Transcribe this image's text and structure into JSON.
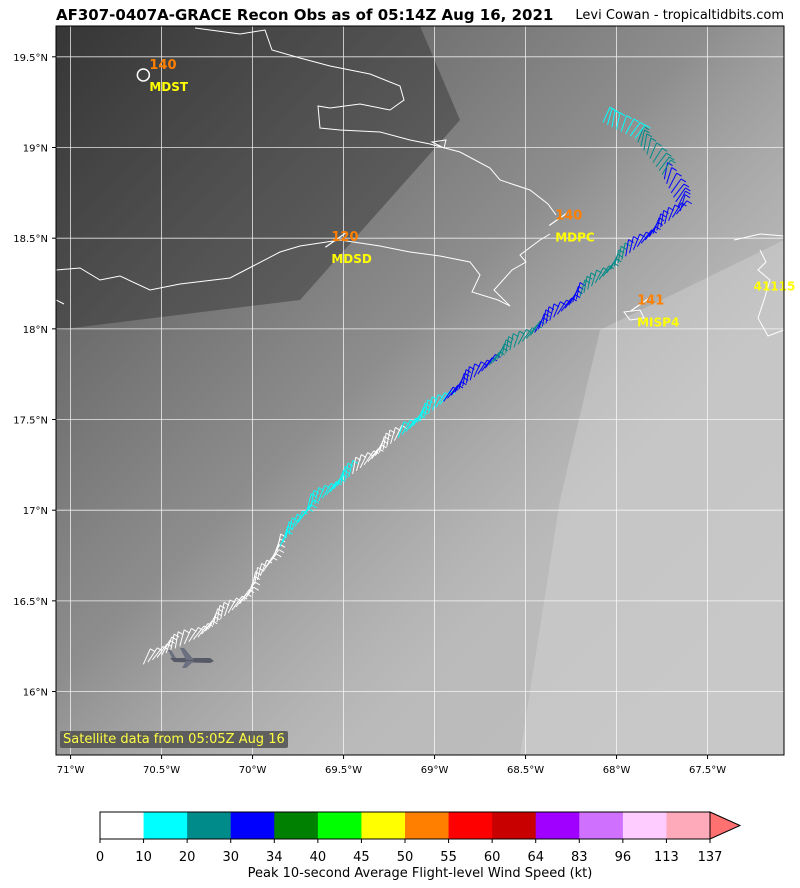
{
  "header": {
    "title": "AF307-0407A-GRACE Recon Obs as of 05:14Z Aug 16, 2021",
    "credit": "Levi Cowan - tropicaltidbits.com"
  },
  "map": {
    "lat_labels": [
      "19.5°N",
      "19°N",
      "18.5°N",
      "18°N",
      "17.5°N",
      "17°N",
      "16.5°N",
      "16°N"
    ],
    "lat_values": [
      19.5,
      19.0,
      18.5,
      18.0,
      17.5,
      17.0,
      16.5,
      16.0
    ],
    "lon_labels": [
      "71°W",
      "70.5°W",
      "70°W",
      "69.5°W",
      "69°W",
      "68.5°W",
      "68°W",
      "67.5°W"
    ],
    "lon_values": [
      -71.0,
      -70.5,
      -70.0,
      -69.5,
      -69.0,
      -68.5,
      -68.0,
      -67.5
    ],
    "lon_range": [
      -71.08,
      -67.08
    ],
    "lat_range": [
      15.65,
      19.67
    ],
    "satellite_label": "Satellite data from 05:05Z Aug 16",
    "stations": [
      {
        "id": "MDST",
        "wind": "140",
        "lon": -70.6,
        "lat": 19.4
      },
      {
        "id": "MDSD",
        "wind": "120",
        "lon": -69.6,
        "lat": 18.45
      },
      {
        "id": "MDPC",
        "wind": "140",
        "lon": -68.37,
        "lat": 18.57
      },
      {
        "id": "MISP4",
        "wind": "141",
        "lon": -67.92,
        "lat": 18.1
      },
      {
        "id": "41115",
        "wind": "",
        "lon": -67.28,
        "lat": 18.3
      }
    ],
    "flight_track": [
      {
        "lon": -70.6,
        "lat": 16.15,
        "color": "#ffffff"
      },
      {
        "lon": -70.3,
        "lat": 16.3,
        "color": "#ffffff"
      },
      {
        "lon": -70.05,
        "lat": 16.5,
        "color": "#ffffff"
      },
      {
        "lon": -69.85,
        "lat": 16.8,
        "color": "#00ffff"
      },
      {
        "lon": -69.7,
        "lat": 17.0,
        "color": "#00ffff"
      },
      {
        "lon": -69.45,
        "lat": 17.2,
        "color": "#ffffff"
      },
      {
        "lon": -69.2,
        "lat": 17.4,
        "color": "#00ffff"
      },
      {
        "lon": -68.95,
        "lat": 17.6,
        "color": "#0000ff"
      },
      {
        "lon": -68.7,
        "lat": 17.8,
        "color": "#008b8b"
      },
      {
        "lon": -68.45,
        "lat": 17.98,
        "color": "#0000ff"
      },
      {
        "lon": -68.2,
        "lat": 18.18,
        "color": "#008b8b"
      },
      {
        "lon": -67.95,
        "lat": 18.4,
        "color": "#0000ff"
      },
      {
        "lon": -67.65,
        "lat": 18.65,
        "color": "#0000ff"
      },
      {
        "lon": -67.75,
        "lat": 18.85,
        "color": "#008b8b"
      },
      {
        "lon": -67.9,
        "lat": 19.05,
        "color": "#00ffff"
      },
      {
        "lon": -68.1,
        "lat": 19.15,
        "color": "#0000ff"
      }
    ]
  },
  "colorbar": {
    "ticks": [
      "0",
      "10",
      "20",
      "30",
      "34",
      "40",
      "45",
      "50",
      "55",
      "60",
      "64",
      "83",
      "96",
      "113",
      "137"
    ],
    "colors": [
      "#ffffff",
      "#00ffff",
      "#008b8b",
      "#0000ff",
      "#008000",
      "#00ff00",
      "#ffff00",
      "#ff7f00",
      "#ff0000",
      "#c80000",
      "#a000ff",
      "#d070ff",
      "#ffccff",
      "#ffaabb"
    ],
    "extend_color": "#ff7070",
    "title": "Peak 10-second Average Flight-level Wind Speed (kt)"
  }
}
